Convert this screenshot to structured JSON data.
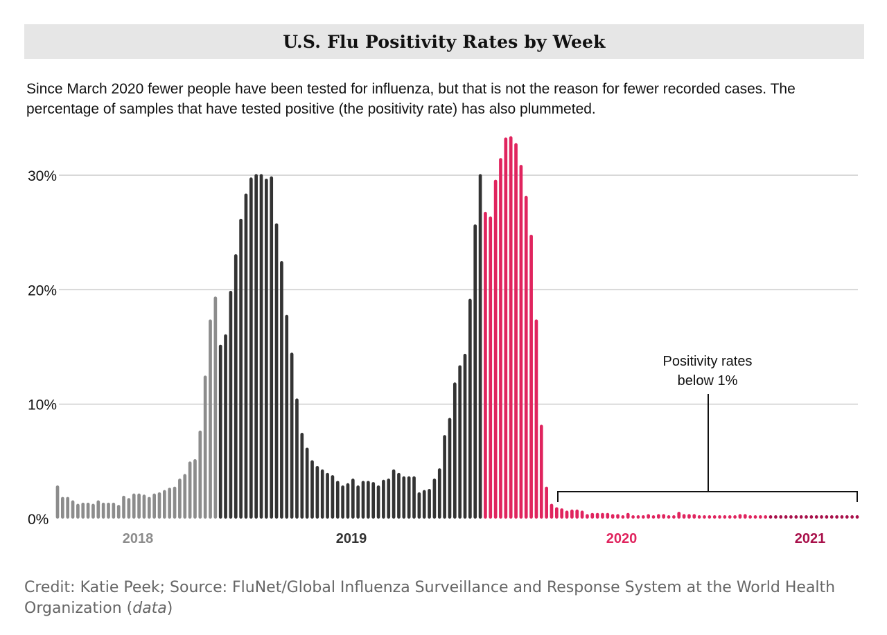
{
  "title": "U.S. Flu Positivity Rates by Week",
  "subtitle": "Since March 2020 fewer people have been tested for influenza, but that is not the reason for fewer recorded cases. The percentage of samples that have tested positive (the positivity rate) has also plummeted.",
  "credit": {
    "prefix": "Credit: Katie Peek; Source: FluNet/Global Influenza Surveillance and Response System at the World Health Organization (",
    "link": "data",
    "suffix": ")"
  },
  "chart_data": {
    "type": "bar",
    "title": "U.S. Flu Positivity Rates by Week",
    "xlabel": "",
    "ylabel": "",
    "ylim": [
      0,
      30
    ],
    "y_ticks": [
      0,
      10,
      20,
      30
    ],
    "y_tick_labels": [
      "0%",
      "10%",
      "20%",
      "30%"
    ],
    "grid": true,
    "x_year_labels": [
      {
        "label": "2018",
        "color": "#8c8c8c"
      },
      {
        "label": "2019",
        "color": "#333333"
      },
      {
        "label": "2020",
        "color": "#e0245e"
      },
      {
        "label": "2021",
        "color": "#a8104a"
      }
    ],
    "annotation": "Positivity rates below 1%",
    "series": [
      {
        "color": "#8c8c8c",
        "values": [
          2.9,
          1.9,
          1.9,
          1.6,
          1.3,
          1.4,
          1.4,
          1.3,
          1.6,
          1.4,
          1.4,
          1.4,
          1.2,
          2,
          1.8,
          2.2,
          2.2,
          2.1,
          1.9,
          2.2,
          2.3,
          2.5,
          2.7,
          2.8,
          3.5,
          3.9,
          5,
          5.2,
          7.7,
          12.5,
          17.4,
          19.4
        ]
      },
      {
        "color": "#333333",
        "values": [
          15.2,
          16.1,
          19.9,
          23.1,
          26.2,
          28.4,
          29.8,
          30.1,
          30.1,
          29.7,
          29.9,
          25.8,
          22.5,
          17.8,
          14.5,
          10.5,
          7.5,
          6.2,
          5.1,
          4.6,
          4.3,
          4,
          3.8,
          3.3,
          2.9,
          3.1,
          3.5,
          2.9,
          3.3,
          3.3,
          3.2,
          2.9,
          3.4,
          3.5,
          4.3,
          4,
          3.7,
          3.7,
          3.7,
          2.3,
          2.5,
          2.6,
          3.5,
          4.4,
          7.3,
          8.8,
          11.9,
          13.4,
          14.4,
          19.2,
          25.7,
          30.1
        ]
      },
      {
        "color": "#e0245e",
        "values": [
          26.8,
          26.4,
          29.6,
          31.5,
          33.3,
          33.4,
          32.8,
          30.9,
          28.2,
          24.8,
          17.4,
          8.2,
          2.8,
          1.3,
          1,
          0.9,
          0.7,
          0.8,
          0.8,
          0.7,
          0.4,
          0.5,
          0.5,
          0.5,
          0.5,
          0.4,
          0.4,
          0.3,
          0.5,
          0.3,
          0.3,
          0.3,
          0.4,
          0.3,
          0.4,
          0.4,
          0.3,
          0.3,
          0.6,
          0.4,
          0.4,
          0.4,
          0.3,
          0.3,
          0.3,
          0.3,
          0.3,
          0.3,
          0.3,
          0.3,
          0.4,
          0.4,
          0.3,
          0.3,
          0.3,
          0.3
        ]
      },
      {
        "color": "#a8104a",
        "values": [
          0.3,
          0.3,
          0.3,
          0.3,
          0.3,
          0.3,
          0.3,
          0.3,
          0.3,
          0.3,
          0.3,
          0.3,
          0.3,
          0.3,
          0.3,
          0.3,
          0.3,
          0.3
        ]
      }
    ]
  }
}
